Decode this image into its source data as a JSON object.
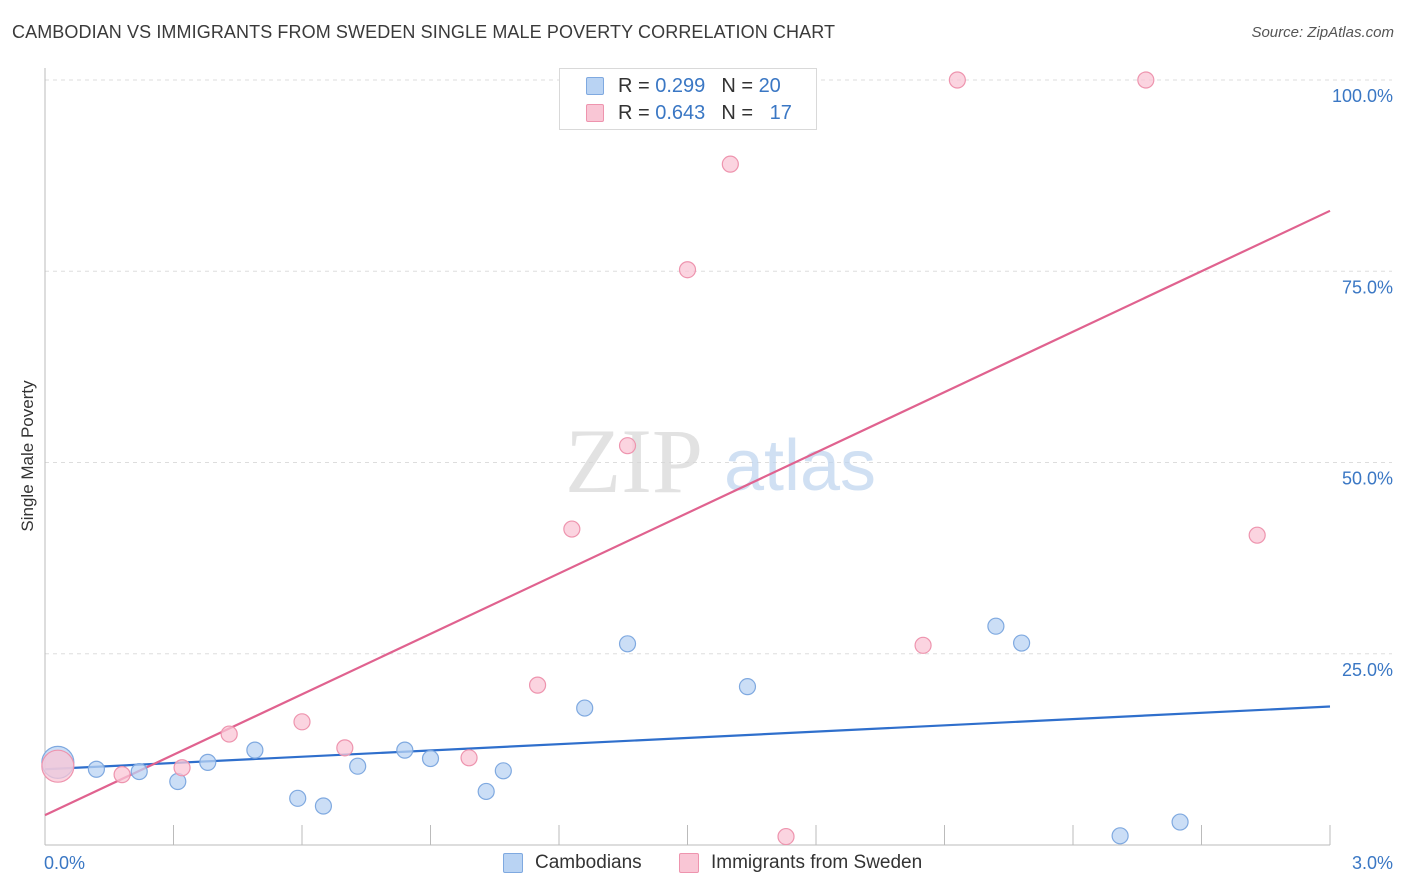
{
  "title": "CAMBODIAN VS IMMIGRANTS FROM SWEDEN SINGLE MALE POVERTY CORRELATION CHART",
  "source": "Source: ZipAtlas.com",
  "watermark": {
    "zip": "ZIP",
    "atlas": "atlas"
  },
  "legend_top": {
    "rows": [
      {
        "r_label": "R =",
        "r_value": "0.299",
        "n_label": "N =",
        "n_value": "20"
      },
      {
        "r_label": "R =",
        "r_value": "0.643",
        "n_label": "N =",
        "n_value": "17"
      }
    ]
  },
  "colors": {
    "blue_fill": "#b9d3f3",
    "blue_stroke": "#7fa9e0",
    "blue_line": "#2f6fcc",
    "pink_fill": "#f9c6d5",
    "pink_stroke": "#ee94ae",
    "pink_line": "#e0628f",
    "grid": "#dddddd",
    "tick_text": "#3a77c4",
    "axis": "#bbbbbb"
  },
  "chart_data": {
    "type": "scatter",
    "title": "CAMBODIAN VS IMMIGRANTS FROM SWEDEN SINGLE MALE POVERTY CORRELATION CHART",
    "xlabel": "",
    "ylabel": "Single Male Poverty",
    "xlim": [
      0,
      3.0
    ],
    "ylim": [
      0,
      100
    ],
    "x_tick_labels": [
      "0.0%",
      "3.0%"
    ],
    "y_ticks": [
      {
        "value": 25,
        "label": "25.0%"
      },
      {
        "value": 50,
        "label": "50.0%"
      },
      {
        "value": 75,
        "label": "75.0%"
      },
      {
        "value": 100,
        "label": "100.0%"
      }
    ],
    "series": [
      {
        "name": "Cambodians",
        "color": "blue",
        "points": [
          {
            "x": 0.03,
            "y": 10.8,
            "size": "large"
          },
          {
            "x": 0.12,
            "y": 9.9
          },
          {
            "x": 0.22,
            "y": 9.6
          },
          {
            "x": 0.31,
            "y": 8.3
          },
          {
            "x": 0.38,
            "y": 10.8
          },
          {
            "x": 0.49,
            "y": 12.4
          },
          {
            "x": 0.59,
            "y": 6.1
          },
          {
            "x": 0.65,
            "y": 5.1
          },
          {
            "x": 0.73,
            "y": 10.3
          },
          {
            "x": 0.84,
            "y": 12.4
          },
          {
            "x": 0.9,
            "y": 11.3
          },
          {
            "x": 1.03,
            "y": 7.0
          },
          {
            "x": 1.07,
            "y": 9.7
          },
          {
            "x": 1.26,
            "y": 17.9
          },
          {
            "x": 1.36,
            "y": 26.3
          },
          {
            "x": 1.64,
            "y": 20.7
          },
          {
            "x": 2.22,
            "y": 28.6
          },
          {
            "x": 2.28,
            "y": 26.4
          },
          {
            "x": 2.51,
            "y": 1.2
          },
          {
            "x": 2.65,
            "y": 3.0
          }
        ],
        "trend": {
          "x": [
            0,
            3.0
          ],
          "y": [
            9.9,
            18.1
          ]
        }
      },
      {
        "name": "Immigrants from Sweden",
        "color": "pink",
        "points": [
          {
            "x": 0.03,
            "y": 10.3,
            "size": "large"
          },
          {
            "x": 0.18,
            "y": 9.2
          },
          {
            "x": 0.32,
            "y": 10.1
          },
          {
            "x": 0.43,
            "y": 14.5
          },
          {
            "x": 0.6,
            "y": 16.1
          },
          {
            "x": 0.7,
            "y": 12.7
          },
          {
            "x": 0.99,
            "y": 11.4
          },
          {
            "x": 1.15,
            "y": 20.9
          },
          {
            "x": 1.23,
            "y": 41.3
          },
          {
            "x": 1.36,
            "y": 52.2
          },
          {
            "x": 1.5,
            "y": 75.2
          },
          {
            "x": 1.6,
            "y": 89.0
          },
          {
            "x": 1.73,
            "y": 1.1
          },
          {
            "x": 2.05,
            "y": 26.1
          },
          {
            "x": 2.13,
            "y": 100.0
          },
          {
            "x": 2.57,
            "y": 100.0
          },
          {
            "x": 2.83,
            "y": 40.5
          }
        ],
        "trend": {
          "x": [
            0,
            3.0
          ],
          "y": [
            3.9,
            82.9
          ]
        }
      }
    ]
  }
}
